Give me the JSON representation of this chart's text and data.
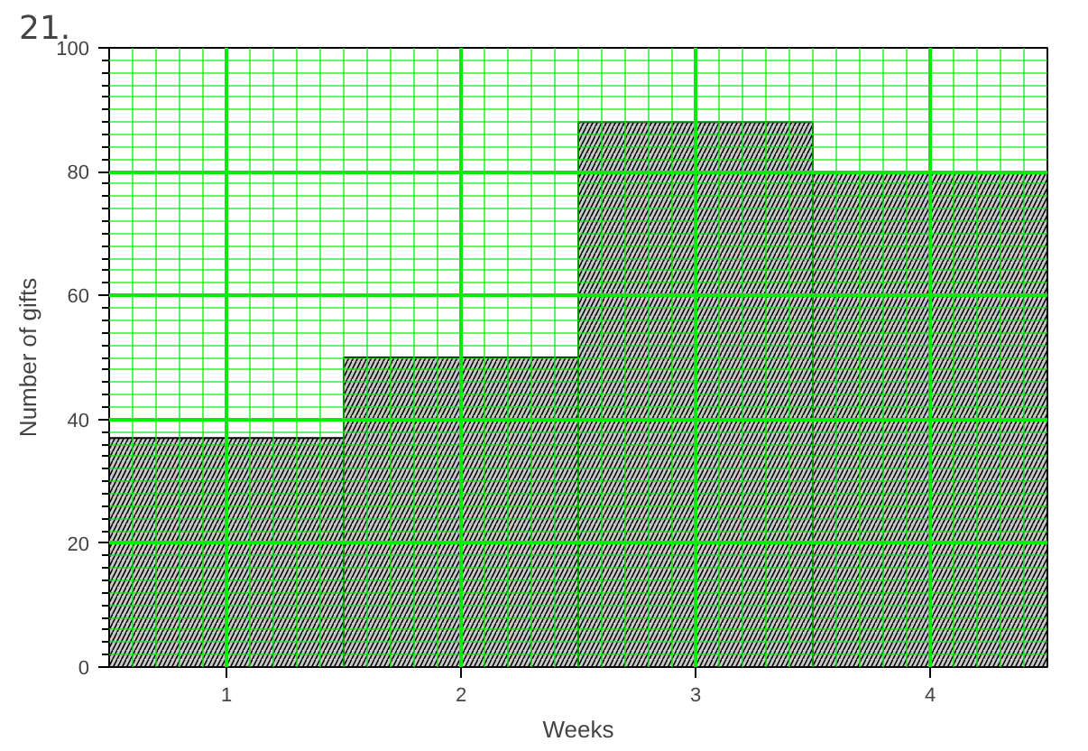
{
  "chart_data": {
    "type": "bar",
    "title": "21.",
    "xlabel": "Weeks",
    "ylabel": "Number of gifts",
    "categories": [
      "1",
      "2",
      "3",
      "4"
    ],
    "values": [
      37,
      50,
      88,
      80
    ],
    "color": "#000000",
    "ylim": [
      0,
      100
    ],
    "yticks": [
      0,
      20,
      40,
      60,
      80,
      100
    ],
    "grid": true
  }
}
